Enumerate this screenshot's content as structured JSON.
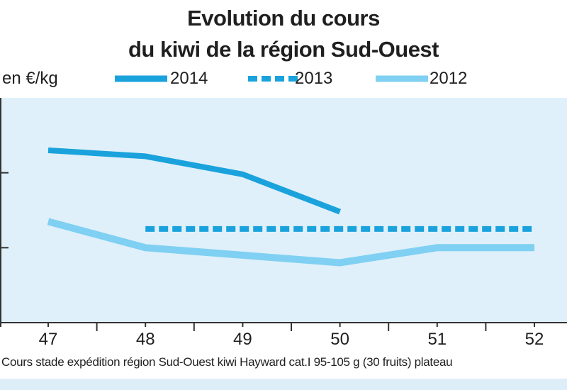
{
  "title_lines": [
    "Evolution du cours",
    "du kiwi de la région Sud-Ouest"
  ],
  "y_unit": "en €/kg",
  "footnote": "Cours stade expédition région Sud-Ouest kiwi Hayward cat.I 95-105 g (30 fruits) plateau",
  "colors": {
    "plot_background": "#dff0fa",
    "axis": "#333333",
    "series_2014": "#1aa2dc",
    "series_2013": "#1aa2dc",
    "series_2012": "#7fd0f2"
  },
  "chart_data": {
    "type": "line",
    "title": "Evolution du cours du kiwi de la région Sud-Ouest",
    "xlabel": "",
    "ylabel": "en €/kg",
    "x": [
      47,
      48,
      49,
      50,
      51,
      52
    ],
    "x_tick_labels": [
      "47",
      "48",
      "49",
      "50",
      "51",
      "52"
    ],
    "xlim": [
      46.55,
      52.3
    ],
    "ylim": [
      0,
      3
    ],
    "y_ticks": [
      1,
      2
    ],
    "y_tick_labels_shown": false,
    "grid": false,
    "legend": "top",
    "series": [
      {
        "name": "2014",
        "style": "solid",
        "x": [
          47,
          48,
          49,
          50
        ],
        "values": [
          2.3,
          2.22,
          1.98,
          1.48
        ]
      },
      {
        "name": "2013",
        "style": "dashed",
        "x": [
          48,
          49,
          50,
          51,
          52
        ],
        "values": [
          1.25,
          1.25,
          1.25,
          1.25,
          1.25
        ]
      },
      {
        "name": "2012",
        "style": "solid",
        "x": [
          47,
          48,
          49,
          50,
          51,
          52
        ],
        "values": [
          1.35,
          1.0,
          0.9,
          0.8,
          1.0,
          1.0
        ]
      }
    ]
  }
}
